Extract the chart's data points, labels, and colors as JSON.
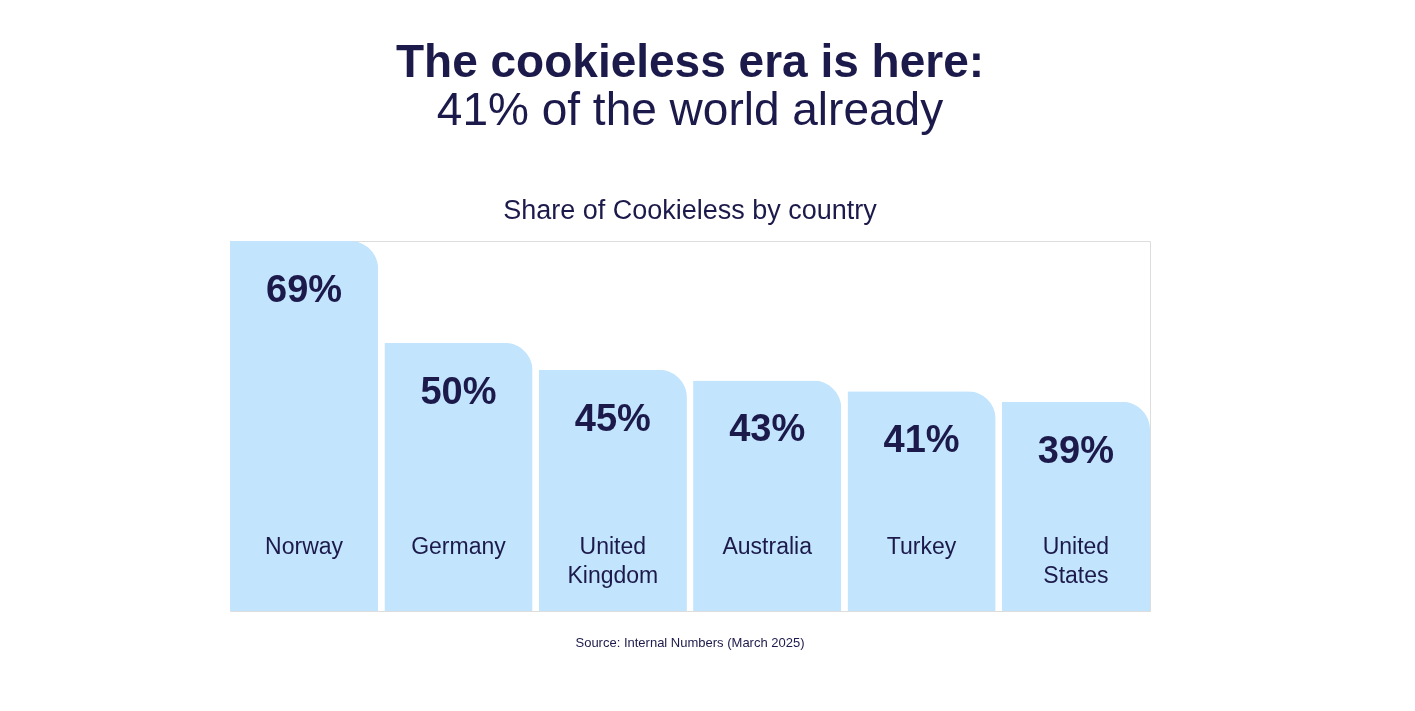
{
  "chart_data": {
    "type": "bar",
    "title": "The cookieless era is here:",
    "subtitle": "41% of the world already",
    "categories": [
      "Norway",
      "Germany",
      "United Kingdom",
      "Australia",
      "Turkey",
      "United States"
    ],
    "values": [
      69,
      50,
      45,
      43,
      41,
      39
    ],
    "value_labels": [
      "69%",
      "50%",
      "45%",
      "43%",
      "41%",
      "39%"
    ],
    "color": "#c2e4fd",
    "annotations": [
      "Share of Cookieless by country",
      "Source: Internal Numbers (March 2025)"
    ]
  }
}
